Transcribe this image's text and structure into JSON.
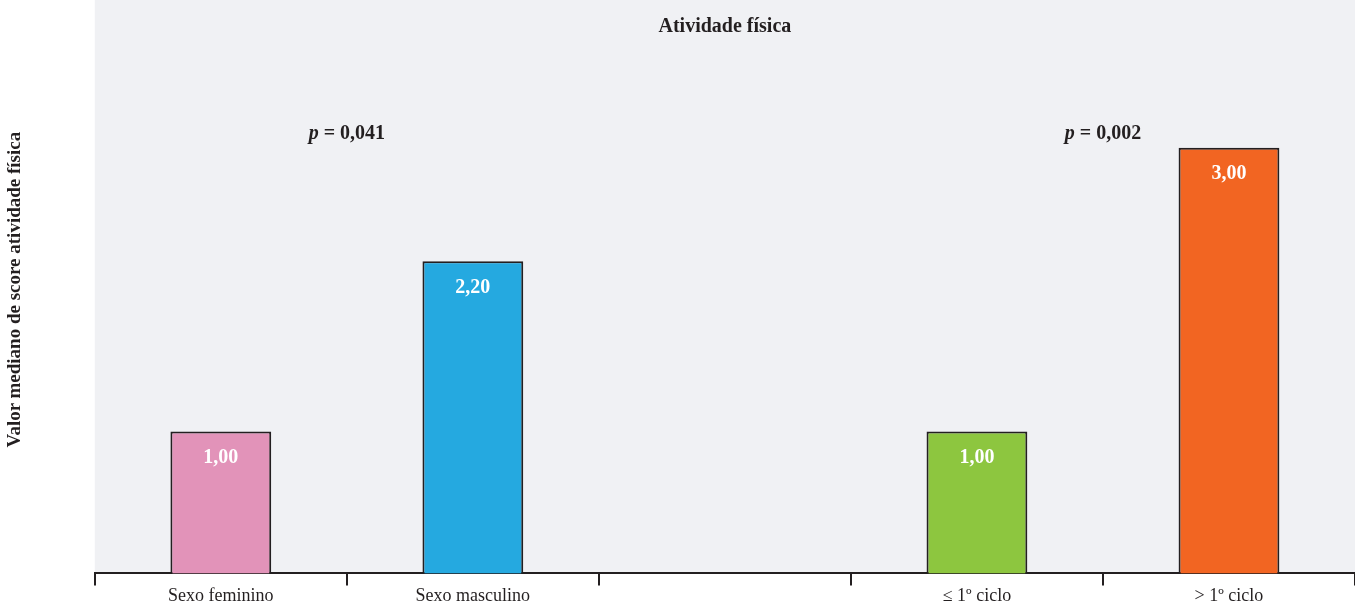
{
  "chart_data": {
    "type": "bar",
    "title": "Atividade física",
    "ylabel": "Valor mediano de score atividade física",
    "categories": [
      "Sexo feminino",
      "Sexo masculino",
      null,
      "≤ 1º ciclo",
      "> 1º ciclo"
    ],
    "values": [
      1.0,
      2.2,
      null,
      1.0,
      3.0
    ],
    "colors": [
      "#e293b9",
      "#25a9e0",
      "#cccccc",
      "#8dc63f",
      "#f26522"
    ],
    "value_labels": [
      "1,00",
      "2,20",
      null,
      "1,00",
      "3,00"
    ],
    "annotations": [
      "p = 0,041",
      "p = 0,002"
    ],
    "grid": false,
    "legend": false
  }
}
